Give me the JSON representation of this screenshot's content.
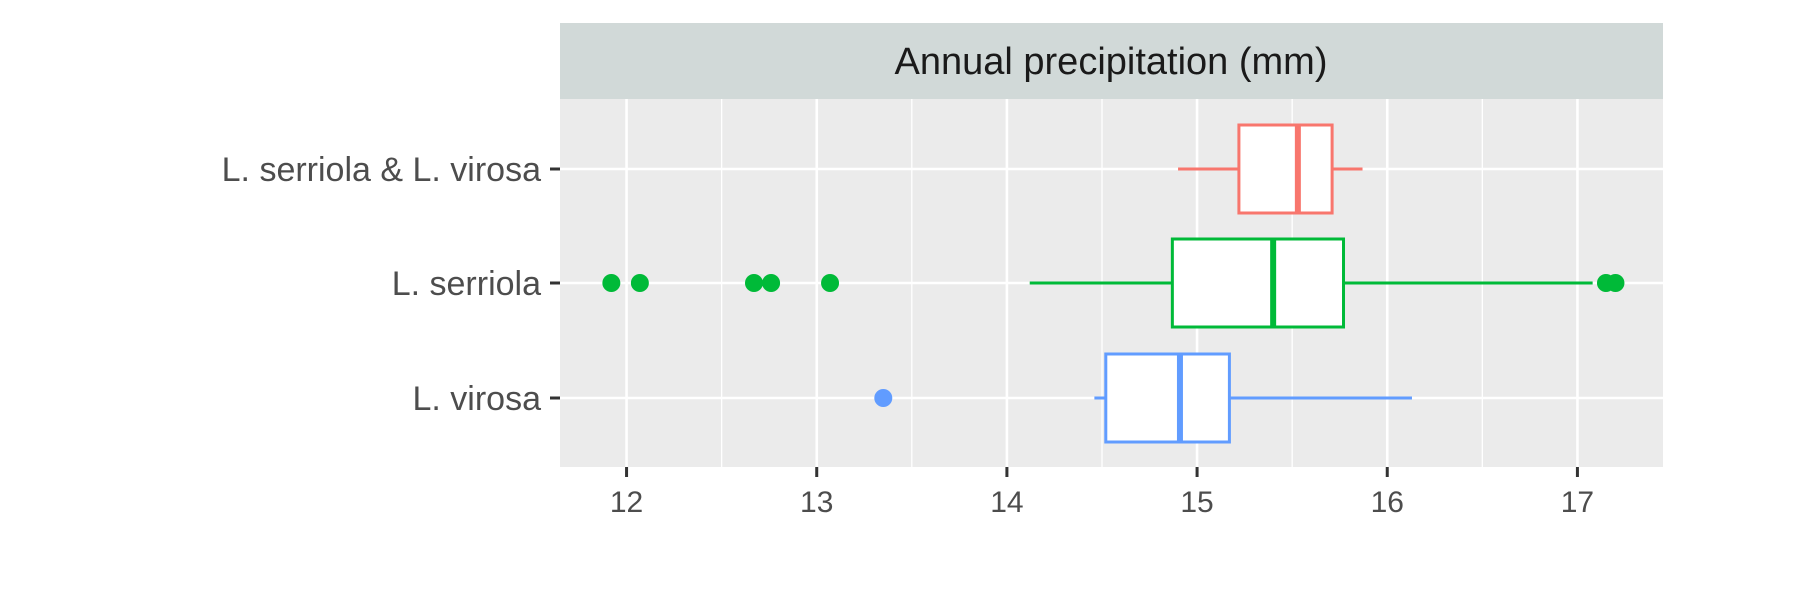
{
  "chart_data": {
    "type": "boxplot",
    "orientation": "horizontal",
    "title": "Annual precipitation (mm)",
    "xlabel": "",
    "ylabel": "",
    "xlim": [
      11.65,
      17.45
    ],
    "xticks": [
      12,
      13,
      14,
      15,
      16,
      17
    ],
    "grid": true,
    "legend": "none",
    "colors": {
      "panel_bg": "#ebebeb",
      "strip_bg": "#d1d9d8",
      "grid": "#ffffff",
      "axis_text": "#4d4d4d"
    },
    "series": [
      {
        "name": "L. serriola & L. virosa",
        "color": "#f8766d",
        "whisker_low": 14.9,
        "q1": 15.22,
        "median": 15.53,
        "q3": 15.71,
        "whisker_high": 15.87,
        "outliers": []
      },
      {
        "name": "L. serriola",
        "color": "#00ba38",
        "whisker_low": 14.12,
        "q1": 14.87,
        "median": 15.4,
        "q3": 15.77,
        "whisker_high": 17.08,
        "outliers": [
          11.92,
          12.07,
          12.67,
          12.76,
          13.07,
          17.15,
          17.2
        ]
      },
      {
        "name": "L. virosa",
        "color": "#619cff",
        "whisker_low": 14.46,
        "q1": 14.52,
        "median": 14.91,
        "q3": 15.17,
        "whisker_high": 16.13,
        "outliers": [
          13.35
        ]
      }
    ]
  }
}
